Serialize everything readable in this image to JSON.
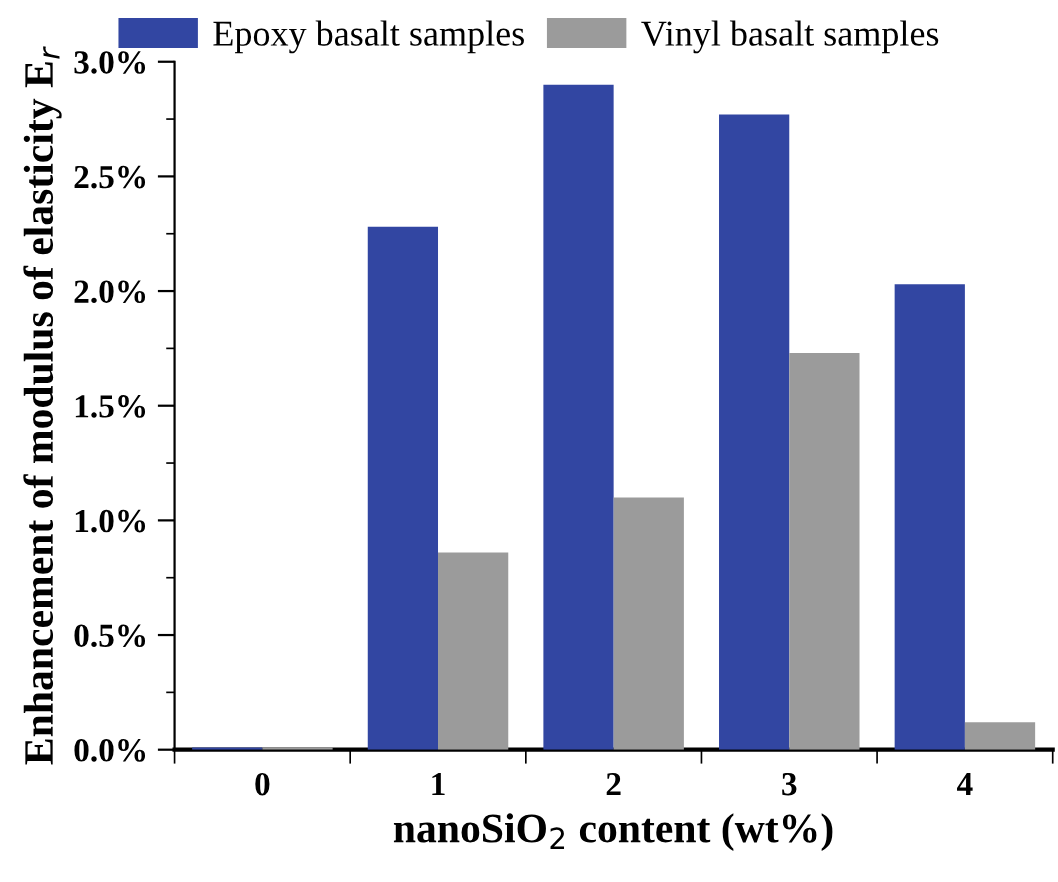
{
  "chart_data": {
    "type": "bar",
    "xlabel": "nanoSiO$_{2}$ content (wt%)",
    "ylabel": "Enhancement of modulus of elasticity E$_{r}$",
    "categories": [
      "0",
      "1",
      "2",
      "3",
      "4"
    ],
    "series": [
      {
        "name": "Epoxy basalt samples",
        "color": "#3246a2",
        "values": [
          0.01,
          2.28,
          2.9,
          2.77,
          2.03
        ]
      },
      {
        "name": "Vinyl basalt samples",
        "color": "#9b9b9b",
        "values": [
          0.01,
          0.86,
          1.1,
          1.73,
          0.12
        ]
      }
    ],
    "ylim": [
      0,
      3.0
    ],
    "yticks": [
      {
        "value": 0,
        "label": "0.0%"
      },
      {
        "value": 0.5,
        "label": "0.5%"
      },
      {
        "value": 1.0,
        "label": "1.0%"
      },
      {
        "value": 1.5,
        "label": "1.5%"
      },
      {
        "value": 2.0,
        "label": "2.0%"
      },
      {
        "value": 2.5,
        "label": "2.5%"
      },
      {
        "value": 3.0,
        "label": "3.0%"
      }
    ],
    "grid": false,
    "legend": "top"
  }
}
